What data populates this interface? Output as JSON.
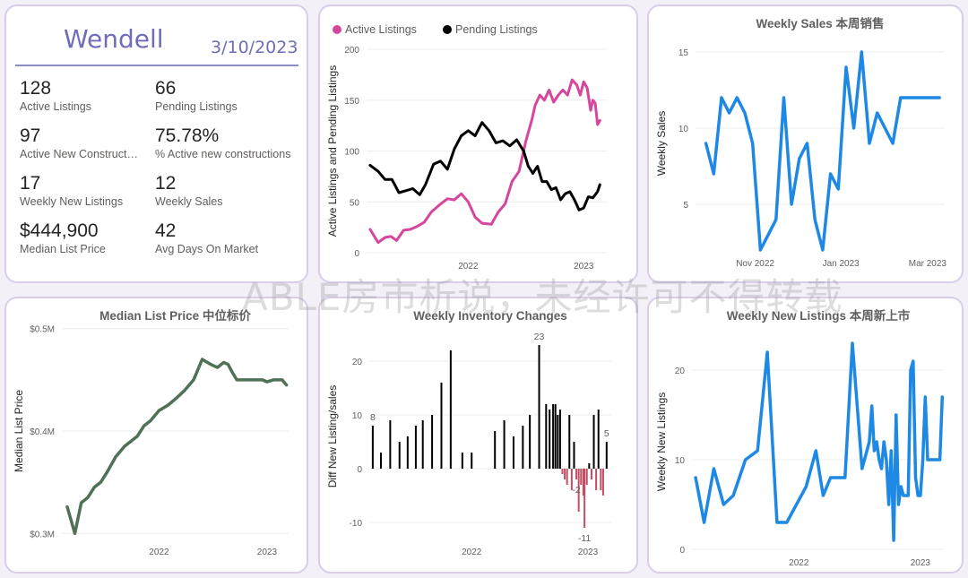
{
  "header": {
    "city": "Wendell",
    "date": "3/10/2023"
  },
  "kpis": [
    {
      "value": "128",
      "label": "Active Listings"
    },
    {
      "value": "66",
      "label": "Pending Listings"
    },
    {
      "value": "97",
      "label": "Active New Constructi..."
    },
    {
      "value": "75.78%",
      "label": "% Active new constructions"
    },
    {
      "value": "17",
      "label": "Weekly New Listings"
    },
    {
      "value": "12",
      "label": "Weekly Sales"
    },
    {
      "value": "$444,900",
      "label": "Median List Price"
    },
    {
      "value": "42",
      "label": "Avg Days On Market"
    }
  ],
  "watermark": "ABLE房市析说，未经许可不得转载",
  "colors": {
    "active": "#d6469d",
    "pending": "#000000",
    "sales": "#1e88e5",
    "median": "#4f7156",
    "pos_bar": "#000000",
    "neg_bar": "#c44e63",
    "card_border": "#d9cdea"
  },
  "chart_data": [
    {
      "id": "listings",
      "type": "line",
      "title": "",
      "legend_position": "top-left",
      "ylabel": "Active Listings and Pending Listings",
      "ylim": [
        0,
        200
      ],
      "yticks": [
        0,
        50,
        100,
        150,
        200
      ],
      "xticks": [
        {
          "label": "2022",
          "x": 2022.0
        },
        {
          "label": "2023",
          "x": 2023.0
        }
      ],
      "xlim": [
        2021.12,
        2023.2
      ],
      "series": [
        {
          "name": "Active Listings",
          "color": "#d6469d",
          "x": [
            2021.15,
            2021.22,
            2021.28,
            2021.33,
            2021.38,
            2021.44,
            2021.5,
            2021.56,
            2021.62,
            2021.68,
            2021.75,
            2021.82,
            2021.88,
            2021.94,
            2022.0,
            2022.06,
            2022.12,
            2022.2,
            2022.26,
            2022.32,
            2022.38,
            2022.44,
            2022.5,
            2022.55,
            2022.58,
            2022.62,
            2022.66,
            2022.7,
            2022.74,
            2022.78,
            2022.82,
            2022.86,
            2022.9,
            2022.94,
            2022.97,
            2023.0,
            2023.03,
            2023.06,
            2023.08,
            2023.1,
            2023.12,
            2023.14
          ],
          "y": [
            23,
            10,
            15,
            16,
            12,
            22,
            23,
            26,
            30,
            40,
            47,
            53,
            52,
            58,
            50,
            35,
            29,
            28,
            40,
            48,
            70,
            80,
            110,
            130,
            145,
            155,
            150,
            160,
            148,
            155,
            160,
            155,
            170,
            165,
            155,
            168,
            162,
            140,
            150,
            147,
            126,
            130
          ]
        },
        {
          "name": "Pending Listings",
          "color": "#000000",
          "x": [
            2021.15,
            2021.22,
            2021.28,
            2021.34,
            2021.4,
            2021.46,
            2021.52,
            2021.58,
            2021.63,
            2021.7,
            2021.76,
            2021.82,
            2021.88,
            2021.94,
            2022.0,
            2022.06,
            2022.12,
            2022.18,
            2022.24,
            2022.3,
            2022.36,
            2022.42,
            2022.48,
            2022.52,
            2022.56,
            2022.6,
            2022.64,
            2022.68,
            2022.72,
            2022.76,
            2022.8,
            2022.84,
            2022.88,
            2022.92,
            2022.96,
            2023.0,
            2023.04,
            2023.08,
            2023.12,
            2023.14
          ],
          "y": [
            86,
            80,
            72,
            72,
            59,
            61,
            63,
            57,
            67,
            87,
            90,
            82,
            102,
            115,
            120,
            115,
            128,
            120,
            108,
            110,
            105,
            111,
            100,
            85,
            78,
            85,
            70,
            70,
            62,
            64,
            52,
            58,
            60,
            52,
            42,
            44,
            55,
            54,
            60,
            67
          ]
        }
      ]
    },
    {
      "id": "weekly-sales",
      "type": "line",
      "title": "Weekly Sales 本周销售",
      "ylabel": "Weekly Sales",
      "ylim": [
        2,
        16
      ],
      "yticks": [
        5,
        10,
        15
      ],
      "xticks": [
        {
          "label": "Nov 2022",
          "x": 2022.835
        },
        {
          "label": "Jan 2023",
          "x": 2023.0
        },
        {
          "label": "Mar 2023",
          "x": 2023.167
        }
      ],
      "xlim": [
        2022.72,
        2023.2
      ],
      "series": [
        {
          "name": "",
          "color": "#1e88e5",
          "x": [
            2022.74,
            2022.755,
            2022.77,
            2022.785,
            2022.8,
            2022.815,
            2022.83,
            2022.845,
            2022.86,
            2022.875,
            2022.89,
            2022.905,
            2022.92,
            2022.935,
            2022.95,
            2022.965,
            2022.98,
            2022.995,
            2023.01,
            2023.025,
            2023.04,
            2023.055,
            2023.07,
            2023.085,
            2023.1,
            2023.115,
            2023.13,
            2023.145,
            2023.16,
            2023.175,
            2023.19
          ],
          "y": [
            9,
            7,
            12,
            11,
            12,
            11,
            9,
            2,
            3,
            4,
            12,
            5,
            8,
            9,
            4,
            2,
            7,
            6,
            14,
            10,
            15,
            9,
            11,
            10,
            9,
            12,
            12,
            12,
            12,
            12,
            12
          ]
        }
      ]
    },
    {
      "id": "median-price",
      "type": "line",
      "title": "Median List Price  中位标价",
      "ylabel": "Median List Price",
      "ylim": [
        0.295,
        0.505
      ],
      "yticks": [
        {
          "v": 0.3,
          "label": "$0.3M"
        },
        {
          "v": 0.4,
          "label": "$0.4M"
        },
        {
          "v": 0.5,
          "label": "$0.5M"
        }
      ],
      "xticks": [
        {
          "label": "2022",
          "x": 2022.0
        },
        {
          "label": "2023",
          "x": 2023.0
        }
      ],
      "xlim": [
        2021.1,
        2023.2
      ],
      "series": [
        {
          "name": "",
          "color": "#4f7156",
          "x": [
            2021.15,
            2021.22,
            2021.28,
            2021.34,
            2021.4,
            2021.46,
            2021.52,
            2021.6,
            2021.68,
            2021.74,
            2021.8,
            2021.86,
            2021.92,
            2022.0,
            2022.08,
            2022.16,
            2022.24,
            2022.32,
            2022.4,
            2022.48,
            2022.54,
            2022.6,
            2022.64,
            2022.68,
            2022.72,
            2022.76,
            2022.8,
            2022.84,
            2022.88,
            2022.92,
            2022.96,
            2023.0,
            2023.06,
            2023.1,
            2023.14,
            2023.18
          ],
          "y": [
            0.326,
            0.3,
            0.33,
            0.335,
            0.345,
            0.35,
            0.36,
            0.375,
            0.385,
            0.39,
            0.395,
            0.405,
            0.41,
            0.42,
            0.425,
            0.432,
            0.44,
            0.45,
            0.47,
            0.465,
            0.462,
            0.467,
            0.465,
            0.457,
            0.45,
            0.45,
            0.45,
            0.45,
            0.45,
            0.45,
            0.45,
            0.448,
            0.45,
            0.45,
            0.45,
            0.445
          ]
        }
      ]
    },
    {
      "id": "inventory-changes",
      "type": "bar",
      "title": "Weekly Inventory Changes",
      "ylabel": "Diff New Listing/sales",
      "ylim": [
        -13,
        25
      ],
      "yticks": [
        -10,
        0,
        10,
        20
      ],
      "xticks": [
        {
          "label": "2022",
          "x": 2022.0
        },
        {
          "label": "2023",
          "x": 2023.0
        }
      ],
      "xlim": [
        2021.12,
        2023.2
      ],
      "data_labels": [
        {
          "x": 2021.15,
          "value": 8
        },
        {
          "x": 2022.58,
          "value": 23
        },
        {
          "x": 2022.9,
          "value": -2
        },
        {
          "x": 2022.97,
          "value": -11
        },
        {
          "x": 2023.16,
          "value": 5
        }
      ],
      "x": [
        2021.15,
        2021.22,
        2021.3,
        2021.38,
        2021.45,
        2021.52,
        2021.58,
        2021.66,
        2021.74,
        2021.82,
        2021.92,
        2022.0,
        2022.2,
        2022.28,
        2022.36,
        2022.44,
        2022.5,
        2022.58,
        2022.64,
        2022.67,
        2022.7,
        2022.72,
        2022.74,
        2022.76,
        2022.78,
        2022.8,
        2022.82,
        2022.84,
        2022.86,
        2022.88,
        2022.9,
        2022.92,
        2022.94,
        2022.96,
        2022.97,
        2022.99,
        2023.01,
        2023.03,
        2023.05,
        2023.07,
        2023.09,
        2023.11,
        2023.13,
        2023.16
      ],
      "values": [
        8,
        3,
        9,
        5,
        6,
        8,
        9,
        10,
        16,
        22,
        3,
        3,
        7,
        9,
        6,
        8,
        10,
        23,
        12,
        11,
        12,
        12,
        10,
        11,
        -1,
        -2,
        -3,
        10,
        -4,
        5,
        -2,
        -8,
        -3,
        -5,
        -11,
        -3,
        1,
        -2,
        10,
        -4,
        11,
        -4,
        -5,
        5
      ]
    },
    {
      "id": "weekly-new-listings",
      "type": "line",
      "title": "Weekly New Listings  本周新上市",
      "ylabel": "Weekly New Listings",
      "ylim": [
        0,
        24
      ],
      "yticks": [
        0,
        10,
        20
      ],
      "xticks": [
        {
          "label": "2022",
          "x": 2022.0
        },
        {
          "label": "2023",
          "x": 2023.0
        }
      ],
      "xlim": [
        2021.12,
        2023.2
      ],
      "series": [
        {
          "name": "",
          "color": "#1e88e5",
          "x": [
            2021.15,
            2021.22,
            2021.3,
            2021.38,
            2021.46,
            2021.56,
            2021.66,
            2021.74,
            2021.82,
            2021.9,
            2021.98,
            2022.06,
            2022.14,
            2022.2,
            2022.26,
            2022.32,
            2022.38,
            2022.44,
            2022.48,
            2022.52,
            2022.56,
            2022.58,
            2022.6,
            2022.62,
            2022.64,
            2022.66,
            2022.68,
            2022.7,
            2022.72,
            2022.74,
            2022.76,
            2022.78,
            2022.8,
            2022.82,
            2022.84,
            2022.86,
            2022.88,
            2022.9,
            2022.92,
            2022.94,
            2022.96,
            2022.98,
            2023.0,
            2023.02,
            2023.04,
            2023.06,
            2023.08,
            2023.1,
            2023.12,
            2023.14,
            2023.16,
            2023.18
          ],
          "y": [
            8,
            3,
            9,
            5,
            6,
            10,
            11,
            22,
            3,
            3,
            5,
            7,
            11,
            6,
            8,
            8,
            8,
            23,
            16,
            9,
            11,
            12,
            16,
            11,
            12,
            10,
            9,
            12,
            10,
            5,
            11,
            1,
            15,
            5,
            7,
            6,
            6,
            6,
            20,
            21,
            8,
            6,
            6,
            10,
            17,
            10,
            10,
            10,
            10,
            10,
            10,
            17
          ]
        }
      ]
    }
  ]
}
